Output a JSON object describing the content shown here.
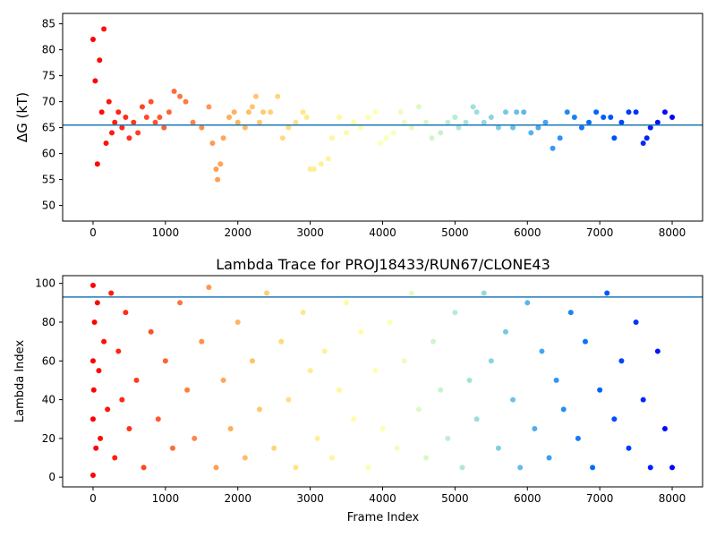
{
  "chart_data": [
    {
      "type": "scatter",
      "title": "",
      "xlabel": "",
      "ylabel": "ΔG (kT)",
      "xlim": [
        -420,
        8420
      ],
      "ylim": [
        47.0,
        87.0
      ],
      "xticks": [
        0,
        1000,
        2000,
        3000,
        4000,
        5000,
        6000,
        7000,
        8000
      ],
      "yticks": [
        50,
        55,
        60,
        65,
        70,
        75,
        80,
        85
      ],
      "hline": 65.5,
      "hline_color": "#1f77b4",
      "colormap": "rainbow (early frames red → late frames violet)",
      "grid": false,
      "series": [
        {
          "x": [
            0,
            30,
            60,
            90,
            120,
            150,
            180,
            220,
            260,
            300,
            350,
            400,
            450,
            500,
            560,
            620,
            680,
            740,
            800,
            860,
            920,
            980,
            1050,
            1120,
            1200,
            1280,
            1380,
            1500,
            1600,
            1650,
            1700,
            1720,
            1760,
            1800,
            1880,
            1950,
            2000,
            2100,
            2150,
            2200,
            2250,
            2300,
            2350,
            2450,
            2550,
            2620,
            2700,
            2800,
            2900,
            2950,
            3000,
            3050,
            3150,
            3250,
            3300,
            3400,
            3500,
            3600,
            3700,
            3800,
            3900,
            3970,
            4050,
            4150,
            4250,
            4300,
            4400,
            4500,
            4600,
            4680,
            4800,
            4900,
            5000,
            5050,
            5150,
            5250,
            5300,
            5400,
            5500,
            5600,
            5700,
            5800,
            5850,
            5950,
            6050,
            6150,
            6250,
            6350,
            6450,
            6550,
            6650,
            6750,
            6850,
            6950,
            7050,
            7150,
            7200,
            7300,
            7400,
            7500,
            7600,
            7650,
            7700,
            7800,
            7900,
            8000
          ],
          "y": [
            82,
            74,
            58,
            78,
            68,
            84,
            62,
            70,
            64,
            66,
            68,
            65,
            67,
            63,
            66,
            64,
            69,
            67,
            70,
            66,
            67,
            65,
            68,
            72,
            71,
            70,
            66,
            65,
            69,
            62,
            57,
            55,
            58,
            63,
            67,
            68,
            66,
            65,
            68,
            69,
            71,
            66,
            68,
            68,
            71,
            63,
            65,
            66,
            68,
            67,
            57,
            57,
            58,
            59,
            63,
            67,
            64,
            66,
            65,
            67,
            68,
            62,
            63,
            64,
            68,
            66,
            65,
            69,
            66,
            63,
            64,
            66,
            67,
            65,
            66,
            69,
            68,
            66,
            67,
            65,
            68,
            65,
            68,
            68,
            64,
            65,
            66,
            61,
            63,
            68,
            67,
            65,
            66,
            68,
            67,
            67,
            63,
            66,
            68,
            68,
            62,
            63,
            65,
            66,
            68,
            67
          ]
        }
      ]
    },
    {
      "type": "scatter",
      "title": "Lambda Trace for PROJ18433/RUN67/CLONE43",
      "xlabel": "Frame Index",
      "ylabel": "Lambda Index",
      "xlim": [
        -420,
        8420
      ],
      "ylim": [
        -5,
        104
      ],
      "xticks": [
        0,
        1000,
        2000,
        3000,
        4000,
        5000,
        6000,
        7000,
        8000
      ],
      "yticks": [
        0,
        20,
        40,
        60,
        80,
        100
      ],
      "hline": 93,
      "hline_color": "#1f77b4",
      "colormap": "rainbow (early frames red → late frames violet)",
      "grid": false,
      "series": [
        {
          "x": [
            0,
            0,
            0,
            0,
            10,
            20,
            40,
            60,
            80,
            100,
            150,
            200,
            250,
            300,
            350,
            400,
            450,
            500,
            600,
            700,
            800,
            900,
            1000,
            1100,
            1200,
            1300,
            1400,
            1500,
            1600,
            1700,
            1800,
            1900,
            2000,
            2100,
            2200,
            2300,
            2400,
            2500,
            2600,
            2700,
            2800,
            2900,
            3000,
            3100,
            3200,
            3300,
            3400,
            3500,
            3600,
            3700,
            3800,
            3900,
            4000,
            4100,
            4200,
            4300,
            4400,
            4500,
            4600,
            4700,
            4800,
            4900,
            5000,
            5100,
            5200,
            5300,
            5400,
            5500,
            5600,
            5700,
            5800,
            5900,
            6000,
            6100,
            6200,
            6300,
            6400,
            6500,
            6600,
            6700,
            6800,
            6900,
            7000,
            7100,
            7200,
            7300,
            7400,
            7500,
            7600,
            7700,
            7800,
            7900,
            8000
          ],
          "y": [
            99,
            1,
            60,
            30,
            45,
            80,
            15,
            90,
            55,
            20,
            70,
            35,
            95,
            10,
            65,
            40,
            85,
            25,
            50,
            5,
            75,
            30,
            60,
            15,
            90,
            45,
            20,
            70,
            98,
            5,
            50,
            25,
            80,
            10,
            60,
            35,
            95,
            15,
            70,
            40,
            5,
            85,
            55,
            20,
            65,
            10,
            45,
            90,
            30,
            75,
            5,
            55,
            25,
            80,
            15,
            60,
            95,
            35,
            10,
            70,
            45,
            20,
            85,
            5,
            50,
            30,
            95,
            60,
            15,
            75,
            40,
            5,
            90,
            25,
            65,
            10,
            50,
            35,
            85,
            20,
            70,
            5,
            45,
            95,
            30,
            60,
            15,
            80,
            40,
            5,
            65,
            25,
            5
          ]
        }
      ]
    }
  ]
}
